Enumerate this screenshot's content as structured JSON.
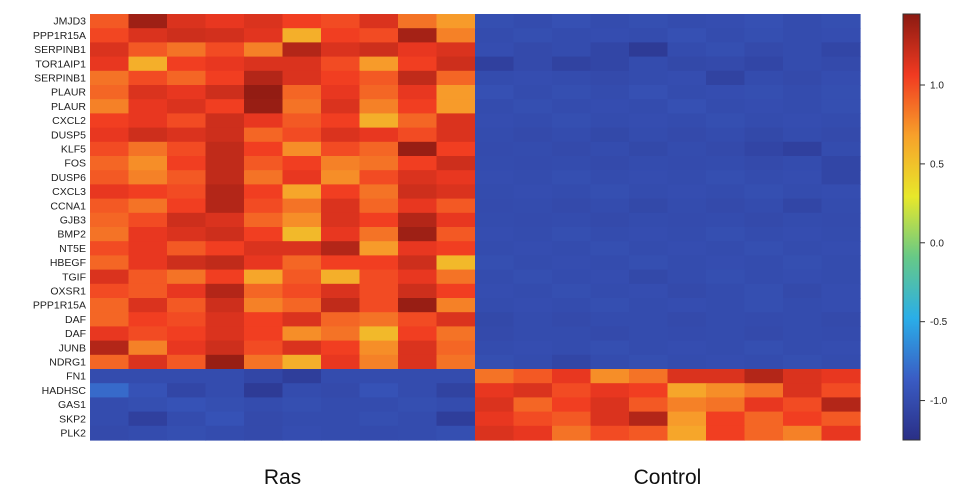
{
  "chart_data": {
    "type": "heatmap",
    "rows": [
      "JMJD3",
      "PPP1R15A",
      "SERPINB1",
      "TOR1AIP1",
      "SERPINB1",
      "PLAUR",
      "PLAUR",
      "CXCL2",
      "DUSP5",
      "KLF5",
      "FOS",
      "DUSP6",
      "CXCL3",
      "CCNA1",
      "GJB3",
      "BMP2",
      "NT5E",
      "HBEGF",
      "TGIF",
      "OXSR1",
      "PPP1R15A",
      "DAF",
      "DAF",
      "JUNB",
      "NDRG1",
      "FN1",
      "HADHSC",
      "GAS1",
      "SKP2",
      "PLK2"
    ],
    "groups": [
      {
        "name": "Ras",
        "columns": 10
      },
      {
        "name": "Control",
        "columns": 10
      }
    ],
    "colorbar": {
      "ticks": [
        1.0,
        0.5,
        0.0,
        -0.5,
        -1.0
      ],
      "tick_labels": [
        "1.0",
        "0.5",
        "0.0",
        "-0.5",
        "-1.0"
      ],
      "range": [
        -1.25,
        1.45
      ],
      "colors": [
        "#2a2f86",
        "#3a5cc4",
        "#2aaee8",
        "#66c987",
        "#e8e82a",
        "#f7a12a",
        "#f13a21",
        "#8b1a12"
      ]
    },
    "values": [
      [
        0.95,
        1.38,
        1.15,
        1.1,
        1.15,
        1.05,
        1.0,
        1.15,
        0.85,
        0.7,
        -0.98,
        -1.0,
        -0.97,
        -1.0,
        -0.98,
        -1.0,
        -0.99,
        -0.97,
        -1.0,
        -0.98
      ],
      [
        1.02,
        1.15,
        1.2,
        1.18,
        1.12,
        0.6,
        1.05,
        1.0,
        1.35,
        0.8,
        -1.0,
        -0.98,
        -1.0,
        -0.99,
        -1.0,
        -0.97,
        -1.0,
        -0.98,
        -1.0,
        -0.99
      ],
      [
        1.15,
        0.95,
        0.85,
        1.0,
        0.8,
        1.3,
        1.15,
        1.2,
        1.1,
        1.15,
        -0.99,
        -1.02,
        -1.0,
        -1.05,
        -1.15,
        -1.0,
        -0.98,
        -1.02,
        -1.0,
        -1.05
      ],
      [
        1.1,
        0.6,
        1.05,
        1.1,
        1.15,
        1.15,
        1.0,
        0.7,
        1.05,
        1.2,
        -1.1,
        -1.02,
        -1.08,
        -1.05,
        -1.0,
        -1.03,
        -1.02,
        -1.05,
        -1.0,
        -1.02
      ],
      [
        0.85,
        1.0,
        0.9,
        1.05,
        1.3,
        1.15,
        1.05,
        0.95,
        1.25,
        0.9,
        -1.0,
        -0.99,
        -1.0,
        -1.02,
        -1.0,
        -0.99,
        -1.08,
        -1.0,
        -1.02,
        -0.99
      ],
      [
        0.9,
        1.15,
        1.1,
        1.2,
        1.42,
        0.9,
        1.1,
        0.9,
        1.1,
        0.7,
        -0.97,
        -1.0,
        -0.98,
        -1.0,
        -0.97,
        -1.0,
        -0.99,
        -0.98,
        -1.0,
        -0.98
      ],
      [
        0.8,
        1.1,
        1.15,
        1.05,
        1.4,
        0.85,
        1.15,
        0.8,
        1.05,
        0.7,
        -1.0,
        -0.98,
        -1.0,
        -0.99,
        -1.0,
        -0.97,
        -1.0,
        -0.99,
        -1.0,
        -0.98
      ],
      [
        1.05,
        1.1,
        1.0,
        1.2,
        1.1,
        0.95,
        1.05,
        0.6,
        0.9,
        1.15,
        -0.99,
        -1.0,
        -0.98,
        -1.0,
        -0.99,
        -1.0,
        -0.98,
        -1.0,
        -0.99,
        -1.0
      ],
      [
        1.1,
        1.2,
        1.15,
        1.2,
        0.9,
        1.0,
        1.15,
        1.1,
        1.0,
        1.15,
        -1.0,
        -1.02,
        -1.0,
        -1.03,
        -1.0,
        -1.02,
        -1.0,
        -1.03,
        -1.0,
        -1.02
      ],
      [
        1.0,
        0.85,
        1.0,
        1.25,
        1.05,
        0.75,
        1.0,
        0.9,
        1.4,
        1.05,
        -1.01,
        -1.0,
        -1.02,
        -1.0,
        -1.03,
        -1.0,
        -1.02,
        -1.06,
        -1.1,
        -1.0
      ],
      [
        0.9,
        0.75,
        1.05,
        1.25,
        0.95,
        1.05,
        0.8,
        0.85,
        1.05,
        1.2,
        -1.0,
        -1.01,
        -1.0,
        -1.02,
        -1.0,
        -1.01,
        -1.0,
        -1.02,
        -1.0,
        -1.05
      ],
      [
        0.95,
        0.8,
        0.95,
        1.25,
        0.85,
        1.1,
        0.75,
        1.0,
        1.15,
        1.1,
        -0.99,
        -1.0,
        -0.98,
        -1.0,
        -0.99,
        -1.0,
        -0.98,
        -1.0,
        -0.99,
        -1.05
      ],
      [
        1.1,
        1.05,
        1.0,
        1.3,
        1.05,
        0.65,
        1.05,
        0.85,
        1.2,
        1.15,
        -1.0,
        -0.99,
        -1.0,
        -0.98,
        -1.0,
        -0.99,
        -1.0,
        -0.98,
        -1.0,
        -0.99
      ],
      [
        0.95,
        0.85,
        1.05,
        1.3,
        1.0,
        0.85,
        1.15,
        0.9,
        1.1,
        0.95,
        -1.01,
        -1.0,
        -1.02,
        -1.0,
        -1.03,
        -1.0,
        -1.02,
        -1.0,
        -1.05,
        -1.0
      ],
      [
        0.9,
        1.0,
        1.2,
        1.15,
        0.9,
        0.75,
        1.15,
        1.05,
        1.3,
        1.1,
        -1.0,
        -1.01,
        -1.0,
        -1.02,
        -1.0,
        -1.01,
        -1.0,
        -1.02,
        -1.0,
        -1.01
      ],
      [
        0.85,
        1.1,
        1.15,
        1.2,
        1.05,
        0.55,
        1.1,
        0.85,
        1.38,
        0.95,
        -0.99,
        -1.0,
        -0.98,
        -1.0,
        -0.99,
        -1.0,
        -0.98,
        -1.0,
        -0.99,
        -1.0
      ],
      [
        1.0,
        1.1,
        0.95,
        1.05,
        1.15,
        1.15,
        1.3,
        0.7,
        1.1,
        1.05,
        -1.0,
        -0.99,
        -1.0,
        -0.98,
        -1.0,
        -0.99,
        -1.0,
        -0.98,
        -1.0,
        -0.99
      ],
      [
        0.9,
        1.1,
        1.2,
        1.25,
        1.1,
        0.9,
        1.05,
        1.05,
        1.2,
        0.55,
        -0.98,
        -1.0,
        -0.99,
        -1.0,
        -0.98,
        -1.0,
        -0.99,
        -1.0,
        -0.98,
        -1.0
      ],
      [
        1.15,
        0.95,
        0.85,
        1.05,
        0.65,
        0.95,
        0.6,
        1.0,
        1.1,
        0.85,
        -1.0,
        -0.98,
        -1.0,
        -0.99,
        -1.03,
        -1.0,
        -0.98,
        -1.0,
        -0.99,
        -1.0
      ],
      [
        1.0,
        0.95,
        1.1,
        1.3,
        0.9,
        1.0,
        1.15,
        1.0,
        1.2,
        1.05,
        -0.99,
        -1.0,
        -0.98,
        -1.0,
        -0.99,
        -1.02,
        -1.0,
        -0.98,
        -1.02,
        -0.99
      ],
      [
        0.9,
        1.15,
        0.95,
        1.2,
        0.8,
        0.9,
        1.25,
        1.0,
        1.4,
        0.8,
        -1.0,
        -0.99,
        -1.0,
        -0.98,
        -1.0,
        -0.99,
        -1.0,
        -0.98,
        -1.0,
        -0.99
      ],
      [
        0.9,
        1.05,
        1.0,
        1.15,
        1.05,
        1.15,
        0.9,
        0.85,
        1.0,
        1.15,
        -1.03,
        -1.0,
        -1.02,
        -1.0,
        -1.0,
        -1.02,
        -1.0,
        -1.01,
        -1.0,
        -1.02
      ],
      [
        1.1,
        1.0,
        1.05,
        1.15,
        1.05,
        0.75,
        0.85,
        0.55,
        1.05,
        0.85,
        -1.02,
        -1.0,
        -1.0,
        -1.02,
        -1.0,
        -1.01,
        -1.0,
        -1.02,
        -1.0,
        -1.01
      ],
      [
        1.3,
        0.8,
        1.1,
        1.2,
        1.0,
        1.15,
        1.05,
        0.75,
        1.15,
        0.9,
        -1.0,
        -0.99,
        -1.0,
        -0.98,
        -1.0,
        -0.99,
        -1.0,
        -0.98,
        -1.0,
        -0.99
      ],
      [
        0.9,
        1.15,
        0.95,
        1.4,
        0.85,
        0.6,
        1.1,
        0.8,
        1.15,
        0.85,
        -0.98,
        -1.0,
        -1.05,
        -1.0,
        -0.98,
        -1.0,
        -0.99,
        -1.0,
        -0.98,
        -1.0
      ],
      [
        -1.0,
        -1.0,
        -1.0,
        -1.0,
        -1.05,
        -1.12,
        -1.0,
        -1.0,
        -1.0,
        -1.0,
        0.85,
        0.95,
        1.1,
        0.75,
        0.85,
        1.15,
        1.15,
        1.3,
        1.15,
        1.1
      ],
      [
        -0.8,
        -0.95,
        -1.05,
        -1.0,
        -1.15,
        -1.0,
        -1.02,
        -0.95,
        -1.0,
        -1.08,
        1.1,
        1.15,
        1.0,
        1.1,
        1.05,
        0.65,
        0.75,
        0.85,
        1.15,
        1.0
      ],
      [
        -1.0,
        -0.98,
        -0.95,
        -0.98,
        -1.0,
        -0.98,
        -1.0,
        -1.0,
        -0.98,
        -1.0,
        1.15,
        0.9,
        1.05,
        1.15,
        0.95,
        0.8,
        0.85,
        1.1,
        1.0,
        1.3
      ],
      [
        -1.0,
        -1.1,
        -1.0,
        -0.95,
        -1.02,
        -1.0,
        -1.0,
        -0.98,
        -1.0,
        -1.12,
        1.1,
        1.0,
        0.95,
        1.15,
        1.3,
        0.7,
        1.05,
        0.9,
        1.05,
        0.95
      ],
      [
        -1.02,
        -1.0,
        -0.98,
        -1.0,
        -1.02,
        -0.99,
        -1.0,
        -1.01,
        -1.0,
        -0.98,
        1.15,
        1.1,
        0.85,
        1.0,
        0.95,
        0.65,
        1.05,
        0.9,
        0.8,
        1.1
      ]
    ]
  }
}
